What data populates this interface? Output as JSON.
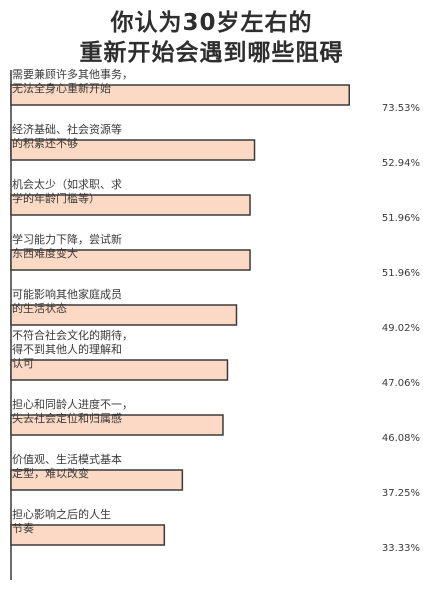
{
  "title_line1": "你认为30岁左右的",
  "title_line2": "重新开始会遇到哪些阻碍",
  "colors": {
    "bar_fill": "#fcd9c4",
    "bar_stroke": "#3a3a3a",
    "text": "#3a3a3a"
  },
  "chart_data": {
    "type": "bar",
    "orientation": "horizontal",
    "title": "你认为30岁左右的重新开始会遇到哪些阻碍",
    "unit": "%",
    "categories": [
      [
        "需要兼顾许多其他事务，",
        "无法全身心重新开始"
      ],
      [
        "经济基础、社会资源等",
        "的积累还不够"
      ],
      [
        "机会太少（如求职、求",
        "学的年龄门槛等）"
      ],
      [
        "学习能力下降，尝试新",
        "东西难度变大"
      ],
      [
        "可能影响其他家庭成员",
        "的生活状态"
      ],
      [
        "不符合社会文化的期待，",
        "得不到其他人的理解和",
        "认可"
      ],
      [
        "担心和同龄人进度不一，",
        "失去社会定位和归属感"
      ],
      [
        "价值观、生活模式基本",
        "定型，难以改变"
      ],
      [
        "担心影响之后的人生",
        "节奏"
      ]
    ],
    "values": [
      73.53,
      52.94,
      51.96,
      51.96,
      49.02,
      47.06,
      46.08,
      37.25,
      33.33
    ],
    "value_labels": [
      "73.53%",
      "52.94%",
      "51.96%",
      "51.96%",
      "49.02%",
      "47.06%",
      "46.08%",
      "37.25%",
      "33.33%"
    ],
    "xlim": [
      0,
      80
    ],
    "grid": false,
    "legend": "none"
  }
}
